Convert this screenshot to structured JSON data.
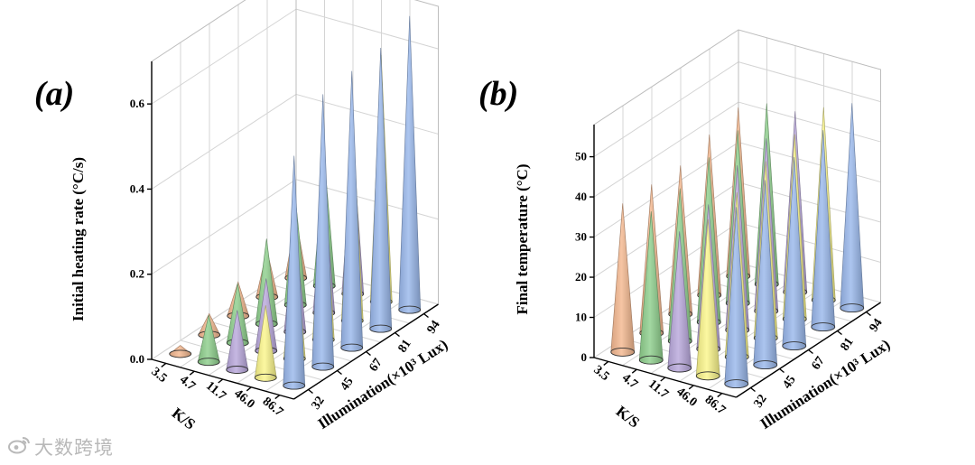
{
  "watermark": {
    "text": "大数跨境",
    "icon": "weibo-logo-icon"
  },
  "colors": {
    "3.5": "#f4b890",
    "4.7": "#8fd08d",
    "11.7": "#b9a8dc",
    "46.0": "#fbf68c",
    "86.7": "#9ab8ec"
  },
  "chart_data": [
    {
      "type": "3d-cone",
      "panel_label": "(a)",
      "zlabel": "Initial heating rate (°C/s)",
      "xlabel": "K/S",
      "ylabel": "Illumination(×10³ Lux)",
      "x_categories": [
        "3.5",
        "4.7",
        "11.7",
        "46.0",
        "86.7"
      ],
      "y_categories": [
        "32",
        "45",
        "67",
        "81",
        "94"
      ],
      "zticks": [
        "0.0",
        "0.2",
        "0.4",
        "0.6"
      ],
      "zlim": [
        0,
        0.7
      ],
      "series": [
        {
          "name": "3.5",
          "values": [
            0.02,
            0.05,
            0.08,
            0.11,
            0.14
          ]
        },
        {
          "name": "4.7",
          "values": [
            0.11,
            0.14,
            0.2,
            0.25,
            0.3
          ]
        },
        {
          "name": "11.7",
          "values": [
            0.14,
            0.17,
            0.24,
            0.3,
            0.36
          ]
        },
        {
          "name": "46.0",
          "values": [
            0.17,
            0.29,
            0.41,
            0.5,
            0.58
          ]
        },
        {
          "name": "86.7",
          "values": [
            0.54,
            0.64,
            0.65,
            0.66,
            0.69
          ]
        }
      ]
    },
    {
      "type": "3d-cone",
      "panel_label": "(b)",
      "zlabel": "Final temperature (°C)",
      "xlabel": "K/S",
      "ylabel": "Illumination(×10³ Lux)",
      "x_categories": [
        "3.5",
        "4.7",
        "11.7",
        "46.0",
        "86.7"
      ],
      "y_categories": [
        "32",
        "45",
        "67",
        "81",
        "94"
      ],
      "zticks": [
        "0",
        "10",
        "20",
        "30",
        "40",
        "50"
      ],
      "zlim": [
        0,
        58
      ],
      "series": [
        {
          "name": "3.5",
          "values": [
            37,
            37,
            37,
            40,
            42
          ]
        },
        {
          "name": "4.7",
          "values": [
            37,
            38,
            41,
            43,
            45
          ]
        },
        {
          "name": "11.7",
          "values": [
            34,
            36,
            41,
            43,
            45
          ]
        },
        {
          "name": "46.0",
          "values": [
            39,
            41,
            44,
            46,
            48
          ]
        },
        {
          "name": "86.7",
          "values": [
            44,
            46,
            47,
            49,
            51
          ]
        }
      ]
    }
  ]
}
